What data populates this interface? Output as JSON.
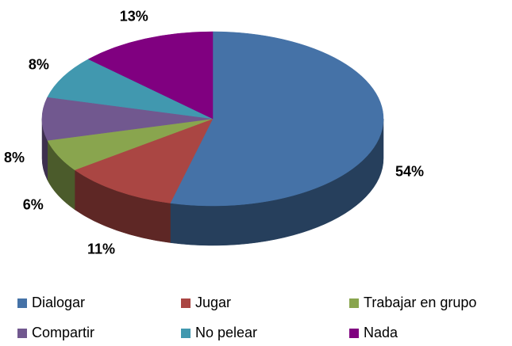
{
  "chart_data": {
    "type": "pie3d",
    "categories": [
      "Dialogar",
      "Jugar",
      "Trabajar en grupo",
      "Compartir",
      "No pelear",
      "Nada"
    ],
    "values": [
      54,
      11,
      6,
      8,
      8,
      13
    ],
    "value_labels": [
      "54%",
      "11%",
      "6%",
      "8%",
      "8%",
      "13%"
    ],
    "colors": [
      "#4572a7",
      "#aa4643",
      "#89a54e",
      "#71588f",
      "#4198af",
      "#800080"
    ],
    "legend": "bottom"
  }
}
